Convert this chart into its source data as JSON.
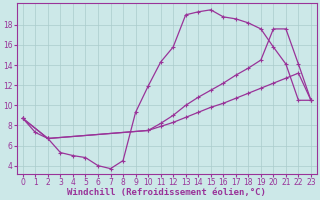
{
  "background_color": "#cce8e8",
  "plot_bg_color": "#cce8e8",
  "line_color": "#993399",
  "grid_color": "#aacccc",
  "xlabel": "Windchill (Refroidissement éolien,°C)",
  "xlabel_fontsize": 6.5,
  "tick_fontsize": 5.5,
  "xlim": [
    -0.5,
    23.5
  ],
  "ylim": [
    3.2,
    20.2
  ],
  "yticks": [
    4,
    6,
    8,
    10,
    12,
    14,
    16,
    18
  ],
  "xticks": [
    0,
    1,
    2,
    3,
    4,
    5,
    6,
    7,
    8,
    9,
    10,
    11,
    12,
    13,
    14,
    15,
    16,
    17,
    18,
    19,
    20,
    21,
    22,
    23
  ],
  "curve1_x": [
    0,
    1,
    2,
    3,
    4,
    5,
    6,
    7,
    8,
    9,
    10,
    11,
    12,
    13,
    14,
    15,
    16,
    17,
    18,
    19,
    20,
    21,
    22,
    23
  ],
  "curve1_y": [
    8.7,
    7.3,
    6.7,
    5.3,
    5.0,
    4.8,
    4.0,
    3.7,
    4.5,
    9.3,
    11.9,
    14.3,
    15.8,
    19.0,
    19.3,
    19.5,
    18.8,
    18.6,
    18.2,
    17.6,
    15.8,
    14.1,
    10.5,
    10.5
  ],
  "curve2_x": [
    0,
    2,
    10,
    11,
    12,
    13,
    14,
    15,
    16,
    17,
    18,
    19,
    20,
    21,
    22,
    23
  ],
  "curve2_y": [
    8.7,
    6.7,
    7.5,
    8.2,
    9.0,
    10.0,
    10.8,
    11.5,
    12.2,
    13.0,
    13.7,
    14.5,
    17.6,
    17.6,
    14.1,
    10.5
  ],
  "curve3_x": [
    0,
    2,
    10,
    11,
    12,
    13,
    14,
    15,
    16,
    17,
    18,
    19,
    20,
    21,
    22,
    23
  ],
  "curve3_y": [
    8.7,
    6.7,
    7.5,
    7.9,
    8.3,
    8.8,
    9.3,
    9.8,
    10.2,
    10.7,
    11.2,
    11.7,
    12.2,
    12.7,
    13.2,
    10.5
  ]
}
